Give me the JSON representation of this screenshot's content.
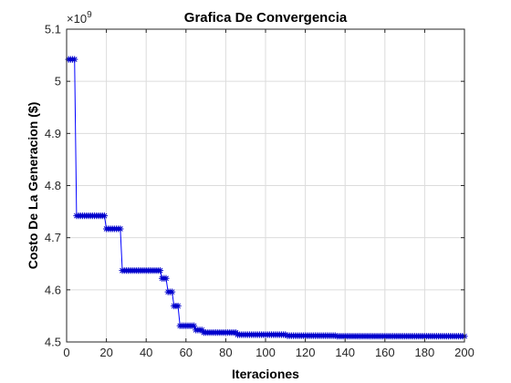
{
  "chart_data": {
    "type": "line",
    "title": "Grafica De Convergencia",
    "xlabel": "Iteraciones",
    "ylabel": "Costo De La Generacion ($)",
    "y_exponent_label": "×10",
    "y_exponent_power": "9",
    "xlim": [
      0,
      200
    ],
    "ylim": [
      4.5,
      5.1
    ],
    "xticks": [
      0,
      20,
      40,
      60,
      80,
      100,
      120,
      140,
      160,
      180,
      200
    ],
    "yticks": [
      4.5,
      4.6,
      4.7,
      4.8,
      4.9,
      5.0,
      5.1
    ],
    "ytick_labels": [
      "4.5",
      "4.6",
      "4.7",
      "4.8",
      "4.9",
      "5",
      "5.1"
    ],
    "grid": true,
    "series_color": "#0000ff",
    "marker_color": "#0000cc",
    "marker": "asterisk",
    "series": [
      {
        "steps": [
          {
            "from": 1,
            "to": 4,
            "y": 5.042
          },
          {
            "from": 5,
            "to": 19,
            "y": 4.742
          },
          {
            "from": 20,
            "to": 27,
            "y": 4.717
          },
          {
            "from": 28,
            "to": 47,
            "y": 4.637
          },
          {
            "from": 48,
            "to": 50,
            "y": 4.622
          },
          {
            "from": 51,
            "to": 53,
            "y": 4.596
          },
          {
            "from": 54,
            "to": 56,
            "y": 4.569
          },
          {
            "from": 57,
            "to": 64,
            "y": 4.531
          },
          {
            "from": 65,
            "to": 68,
            "y": 4.523
          },
          {
            "from": 69,
            "to": 85,
            "y": 4.518
          },
          {
            "from": 86,
            "to": 110,
            "y": 4.514
          },
          {
            "from": 111,
            "to": 135,
            "y": 4.512
          },
          {
            "from": 136,
            "to": 200,
            "y": 4.511
          }
        ]
      }
    ]
  }
}
